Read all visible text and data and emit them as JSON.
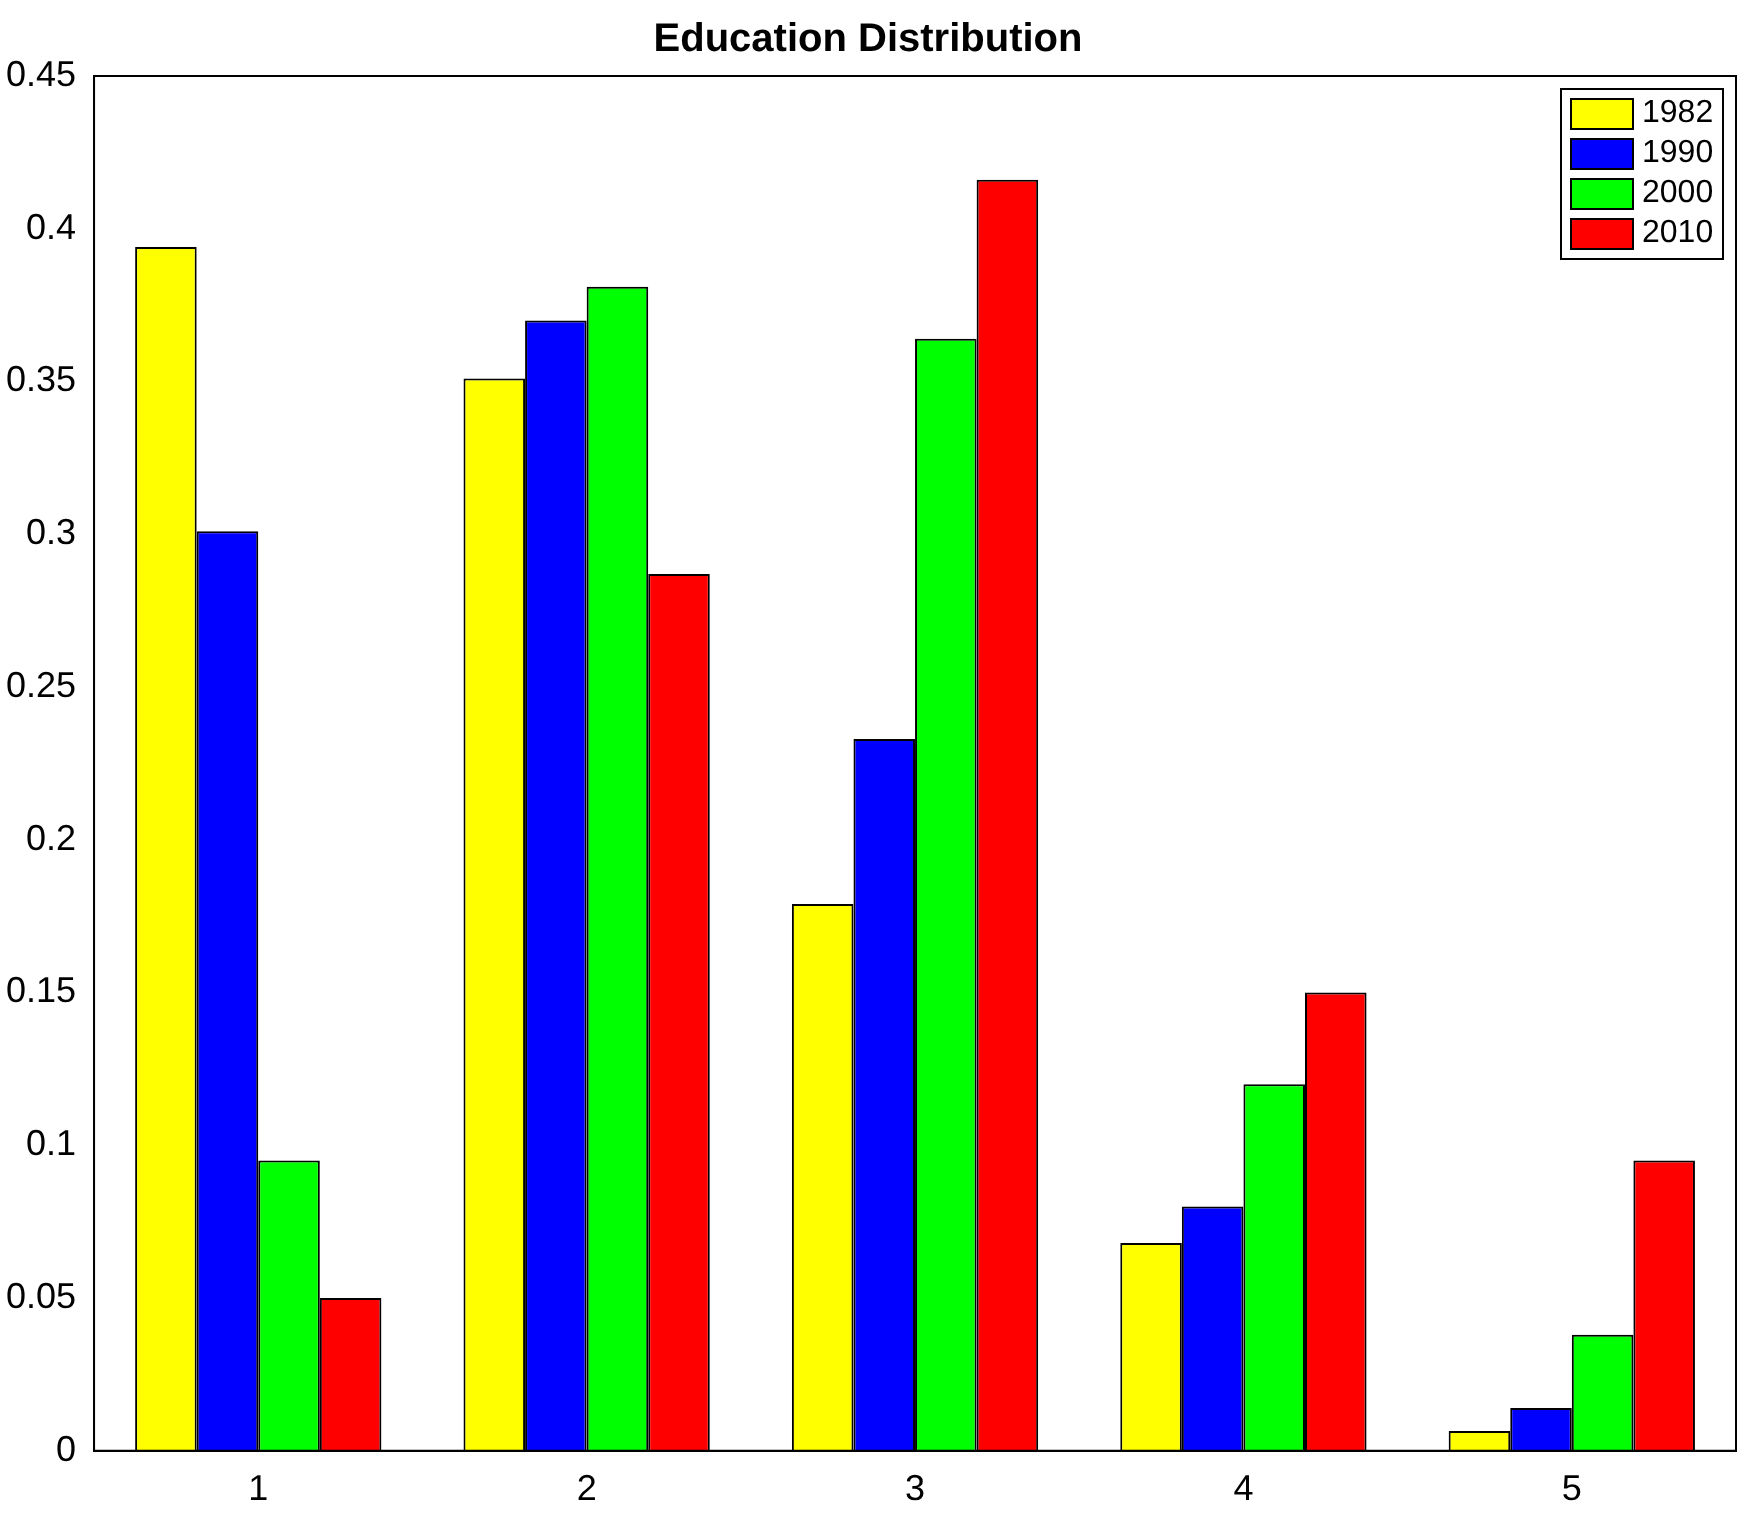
{
  "chart_data": {
    "type": "bar",
    "title": "Education Distribution",
    "categories": [
      "1",
      "2",
      "3",
      "4",
      "5"
    ],
    "series": [
      {
        "name": "1982",
        "color": "#ffff00",
        "values": [
          0.394,
          0.351,
          0.179,
          0.068,
          0.0065
        ]
      },
      {
        "name": "1990",
        "color": "#0000ff",
        "values": [
          0.301,
          0.37,
          0.233,
          0.08,
          0.014
        ]
      },
      {
        "name": "2000",
        "color": "#00ff00",
        "values": [
          0.095,
          0.381,
          0.364,
          0.12,
          0.038
        ]
      },
      {
        "name": "2010",
        "color": "#ff0000",
        "values": [
          0.05,
          0.287,
          0.416,
          0.15,
          0.095
        ]
      }
    ],
    "ylim": [
      0,
      0.45
    ],
    "yticks": [
      0,
      0.05,
      0.1,
      0.15,
      0.2,
      0.25,
      0.3,
      0.35,
      0.4,
      0.45
    ],
    "grid": false,
    "legend": "top right"
  }
}
